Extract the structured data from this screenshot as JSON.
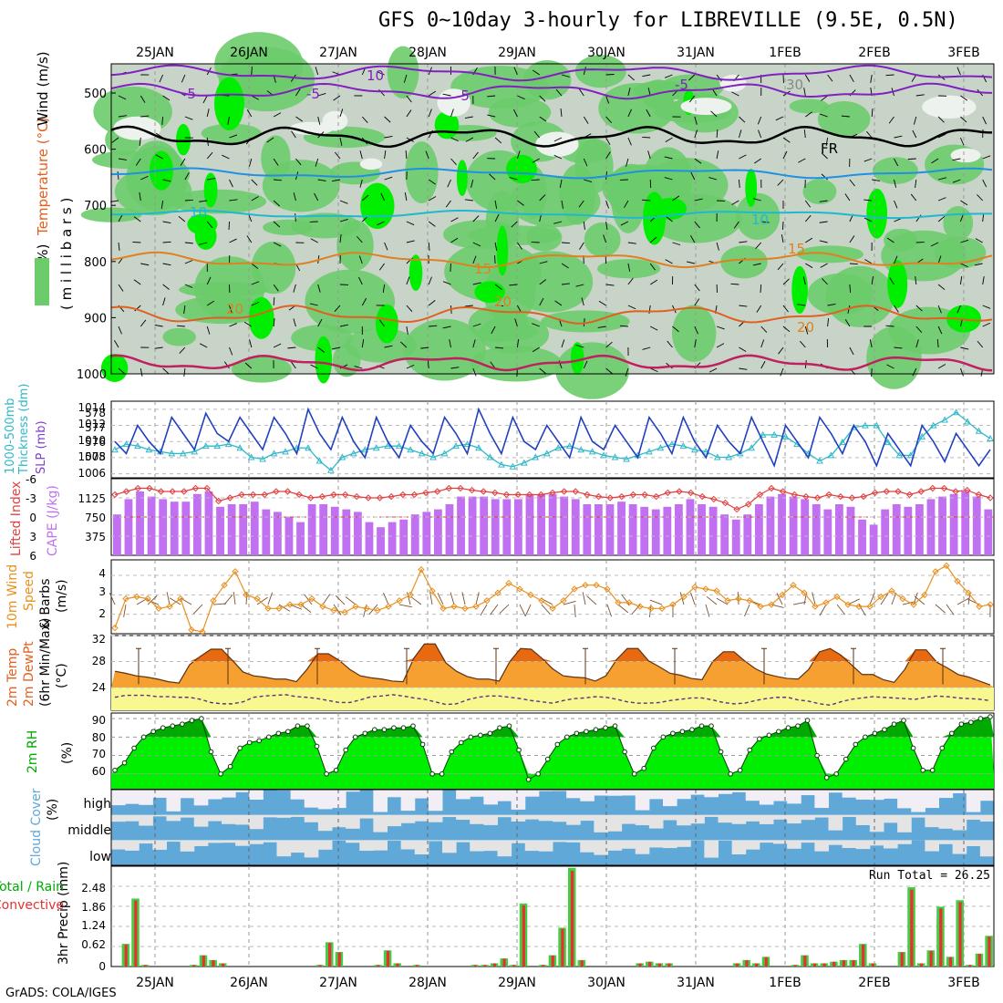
{
  "title": "GFS 0~10day 3-hourly for LIBREVILLE (9.5E, 0.5N)",
  "footer": "GrADS: COLA/IGES",
  "dates": [
    "25JAN",
    "26JAN",
    "27JAN",
    "28JAN",
    "29JAN",
    "30JAN",
    "31JAN",
    "1FEB",
    "2FEB",
    "3FEB"
  ],
  "colors": {
    "rh_light": "#c8d4c8",
    "rh_mid": "#6ccc6c",
    "rh_high": "#00ee00",
    "cape": "#c070f0",
    "temp": "#f5a030",
    "temp_peak": "#e86a10",
    "dewpt_fill": "#f8f890",
    "rh2m_dark": "#00aa00",
    "rh2m_light": "#00ee00",
    "cloud": "#5fa8d8",
    "cloud_clear": "#e4e4e4",
    "precip_total": "#44cc44",
    "precip_conv": "#e83030",
    "slp": "#2040c0",
    "thickness": "#30b8c8",
    "lifted": "#e04040",
    "wind10m": "#e89020"
  },
  "panels": {
    "upper": {
      "ylabel_wind": "Wind (m/s)",
      "ylabel_temp": "Temperature (°C)",
      "ylabel_rh": "RH (%)",
      "ylabel_p": "( m i l l i b a r s )",
      "pressure_ticks": [
        "500",
        "600",
        "700",
        "800",
        "900",
        "1000"
      ],
      "contour_labels": [
        "10",
        "-5",
        "-5",
        "30",
        "-5",
        "-5",
        "FR",
        "10",
        "10",
        "15",
        "15",
        "20",
        "20",
        "20"
      ]
    },
    "slp": {
      "label_left": "1000-500mb",
      "label_left2": "Thickness (dm)",
      "label_right": "SLP (mb)",
      "ticks_left": [
        "578",
        "577",
        "576",
        "575"
      ],
      "ticks_right": [
        "1014",
        "1012",
        "1010",
        "1008",
        "1006"
      ]
    },
    "cape": {
      "label_left": "Lifted Index",
      "label_right": "CAPE (J/kg)",
      "ticks_left": [
        "-6",
        "-3",
        "0",
        "3",
        "6"
      ],
      "ticks_right": [
        "1125",
        "750",
        "375"
      ]
    },
    "wind10": {
      "label1": "10m Wind",
      "label2": "Speed",
      "label3": "& Barbs",
      "unit": "(m/s)",
      "ticks": [
        "4",
        "3",
        "2"
      ]
    },
    "temp2m": {
      "label1": "2m Temp",
      "label2": "2m DewPt",
      "label3": "(6hr Min/Max)",
      "unit": "(°C)",
      "ticks": [
        "32",
        "28",
        "24"
      ]
    },
    "rh2m": {
      "label": "2m RH",
      "unit": "(%)",
      "ticks": [
        "90",
        "80",
        "70",
        "60"
      ]
    },
    "cloud": {
      "label": "Cloud Cover",
      "unit": "(%)",
      "levels": [
        "high",
        "middle",
        "low"
      ]
    },
    "precip": {
      "label1": "Total / Rain",
      "label2": "Convective",
      "unit": "3hr Precip (mm)",
      "ticks": [
        "2.48",
        "1.86",
        "1.24",
        "0.62",
        "0"
      ],
      "run_total": "Run Total = 26.25"
    }
  },
  "chart_data": [
    {
      "type": "area",
      "name": "upper-air RH/temperature/wind cross-section",
      "y_axis": "pressure (mb)",
      "ylim": [
        1000,
        450
      ],
      "contours_temp_c": [
        -10,
        -5,
        0,
        5,
        10,
        15,
        20,
        25
      ]
    },
    {
      "type": "line",
      "name": "SLP and thickness",
      "series": [
        {
          "name": "SLP (mb)",
          "values": [
            1010,
            1008.5,
            1012,
            1010,
            1008.5,
            1013,
            1011,
            1009,
            1013.5,
            1011,
            1010,
            1013,
            1011,
            1009,
            1013,
            1011,
            1008.5,
            1014,
            1011,
            1009,
            1013,
            1010,
            1008,
            1013,
            1010,
            1008,
            1012,
            1010,
            1008.5,
            1013,
            1011,
            1008.5,
            1014,
            1011,
            1008.5,
            1013,
            1010,
            1009,
            1012,
            1010,
            1008,
            1013,
            1010,
            1009,
            1012,
            1010,
            1008,
            1013,
            1011,
            1008.5,
            1013,
            1010,
            1008,
            1012,
            1010,
            1008.5,
            1013,
            1010,
            1007,
            1012,
            1010,
            1008,
            1013,
            1011,
            1008.5,
            1012,
            1010,
            1007,
            1011,
            1009,
            1007,
            1012,
            1010,
            1007.5,
            1011,
            1009,
            1007,
            1009
          ]
        },
        {
          "name": "Thickness (dm)",
          "values": [
            576,
            576.3,
            576.2,
            576,
            575.9,
            575.8,
            575.8,
            575.9,
            576.2,
            576.2,
            576.3,
            576.1,
            575.6,
            575.5,
            575.8,
            575.9,
            576.1,
            576.1,
            575.4,
            574.9,
            575.6,
            575.8,
            576,
            576.1,
            576.2,
            576.2,
            576,
            575.8,
            575.6,
            575.8,
            576.2,
            576.3,
            576.1,
            575.6,
            575.2,
            575.1,
            575.3,
            575.6,
            575.8,
            576.1,
            576.2,
            576,
            575.9,
            575.7,
            575.6,
            575.5,
            575.7,
            575.9,
            576.1,
            576.3,
            576.2,
            576,
            575.9,
            575.6,
            575.6,
            575.8,
            576.1,
            576.8,
            576.8,
            576.7,
            576.3,
            575.8,
            575.4,
            575.7,
            576.4,
            577.2,
            577.3,
            577.3,
            576.4,
            575.7,
            575.7,
            576.7,
            577.3,
            577.6,
            578,
            577.5,
            577,
            576.6
          ]
        }
      ]
    },
    {
      "type": "bar",
      "name": "CAPE and Lifted Index",
      "series": [
        {
          "name": "CAPE (J/kg)",
          "values": [
            800,
            1100,
            1250,
            1150,
            1100,
            1050,
            1050,
            1200,
            1250,
            950,
            1000,
            1000,
            1050,
            900,
            850,
            750,
            650,
            1000,
            1000,
            950,
            900,
            850,
            650,
            550,
            650,
            700,
            800,
            850,
            900,
            1000,
            1150,
            1150,
            1150,
            1100,
            1100,
            1100,
            1200,
            1200,
            1200,
            1150,
            1100,
            1000,
            1000,
            1000,
            1050,
            1000,
            950,
            900,
            950,
            1000,
            1100,
            1000,
            950,
            800,
            700,
            800,
            1000,
            1150,
            1200,
            1150,
            1100,
            1000,
            900,
            1000,
            950,
            700,
            600,
            900,
            1000,
            950,
            1000,
            1100,
            1150,
            1200,
            1250,
            1150,
            900
          ]
        },
        {
          "name": "Lifted Index",
          "values": [
            -3.5,
            -4,
            -4.5,
            -4.5,
            -4,
            -4,
            -4,
            -4.5,
            -4.5,
            -2.5,
            -3,
            -3.5,
            -3.5,
            -3.5,
            -4,
            -4,
            -3.5,
            -3,
            -3.2,
            -3.5,
            -3.5,
            -3.2,
            -3,
            -3,
            -3.2,
            -3.5,
            -3.5,
            -3.8,
            -4,
            -4.5,
            -4.5,
            -4.2,
            -4,
            -3.8,
            -3.5,
            -3.5,
            -3.5,
            -3.5,
            -3.8,
            -4,
            -4,
            -3.5,
            -3.2,
            -3,
            -3.2,
            -3.5,
            -3.5,
            -3.2,
            -3.8,
            -4,
            -3.8,
            -3.2,
            -2.8,
            -2.2,
            -1.2,
            -2,
            -3.5,
            -4.5,
            -4,
            -3.5,
            -3.2,
            -3,
            -3.5,
            -3.2,
            -3,
            -3.2,
            -3.8,
            -4,
            -4,
            -3.5,
            -4,
            -4.5,
            -4.5,
            -4,
            -4.2,
            -3.5,
            -3
          ]
        }
      ]
    },
    {
      "type": "line",
      "name": "10m wind speed",
      "series": [
        {
          "name": "Speed (m/s)",
          "values": [
            1.3,
            2.8,
            2.9,
            2.8,
            2.3,
            2.4,
            2.8,
            1.2,
            1.1,
            2.7,
            3.5,
            4.2,
            3.0,
            2.8,
            2.3,
            2.3,
            2.5,
            2.5,
            2.8,
            2.4,
            2.2,
            2.1,
            2.4,
            2.3,
            2.2,
            2.4,
            2.7,
            3.0,
            4.3,
            3.2,
            2.3,
            2.4,
            2.3,
            2.4,
            2.7,
            3.1,
            3.6,
            3.3,
            3.0,
            2.7,
            2.3,
            2.7,
            3.3,
            3.5,
            3.5,
            3.3,
            2.6,
            2.6,
            2.4,
            2.3,
            2.3,
            2.5,
            2.9,
            3.4,
            3.3,
            3.2,
            2.7,
            2.8,
            2.7,
            2.4,
            2.5,
            3.0,
            3.5,
            3.1,
            2.4,
            2.6,
            2.9,
            2.5,
            2.4,
            2.4,
            2.9,
            3.2,
            2.8,
            2.5,
            3.0,
            4.2,
            4.5,
            3.7,
            3.1,
            2.4,
            2.5
          ]
        }
      ]
    },
    {
      "type": "area",
      "name": "2m temperature and dew point",
      "series": [
        {
          "name": "2m Temp (°C)",
          "values": [
            26.5,
            26.2,
            25.8,
            25.6,
            25.3,
            24.9,
            24.7,
            27.5,
            28.8,
            29.9,
            29.9,
            28.2,
            26.4,
            25.8,
            25.6,
            25.3,
            25.3,
            24.9,
            26.8,
            29.2,
            29.2,
            28.2,
            26.8,
            25.8,
            25.5,
            25.3,
            25.0,
            24.9,
            28.5,
            30.7,
            30.7,
            27.8,
            26.5,
            25.7,
            25.3,
            25.3,
            25.0,
            28.0,
            30.0,
            29.9,
            28.5,
            26.9,
            25.8,
            25.6,
            25.5,
            25.0,
            25.8,
            28.3,
            30.0,
            30.0,
            28.1,
            27.2,
            26.2,
            25.9,
            25.4,
            25.2,
            28.0,
            29.5,
            29.5,
            28.1,
            26.9,
            26.1,
            25.7,
            25.4,
            25.3,
            26.8,
            29.5,
            30.0,
            29.0,
            27.5,
            26.0,
            26.0,
            25.2,
            24.8,
            26.8,
            29.8,
            29.8,
            27.9,
            27.0,
            26.0,
            25.6,
            25.0,
            24.4
          ]
        },
        {
          "name": "2m DewPt (°C)",
          "values": [
            22.5,
            22.8,
            22.8,
            22.8,
            22.6,
            22.6,
            22.5,
            22.5,
            22.2,
            21.7,
            21.5,
            21.5,
            21.8,
            22.5,
            22.7,
            22.8,
            22.9,
            22.6,
            22.5,
            22.3,
            22.0,
            21.7,
            21.7,
            22.1,
            22.6,
            22.7,
            22.9,
            22.7,
            22.4,
            22.2,
            21.8,
            21.4,
            21.5,
            22.1,
            22.5,
            22.7,
            22.7,
            22.5,
            22.3,
            22.0,
            21.8,
            21.6,
            22.0,
            22.3,
            22.4,
            22.6,
            22.5,
            22.2,
            21.8,
            21.6,
            21.6,
            21.7,
            22.0,
            22.2,
            22.4,
            22.4,
            22.1,
            21.7,
            21.5,
            21.6,
            22.0,
            22.3,
            22.5,
            22.5,
            22.1,
            21.9,
            21.5,
            21.3,
            21.8,
            22.2,
            22.4,
            22.6,
            22.5,
            22.4,
            22.3,
            22.2,
            22.5,
            22.7,
            22.6,
            22.4,
            22.3,
            22.2,
            22.0
          ]
        }
      ]
    },
    {
      "type": "area",
      "name": "2m RH",
      "series": [
        {
          "name": "2m RH (%)",
          "values": [
            62,
            66,
            74,
            80,
            83,
            85,
            86,
            87,
            89,
            90,
            72,
            60,
            64,
            74,
            77,
            78,
            80,
            82,
            83,
            86,
            86,
            75,
            60,
            62,
            73,
            80,
            82,
            84,
            84,
            85,
            85,
            86,
            76,
            60,
            60,
            72,
            77,
            80,
            81,
            82,
            85,
            86,
            73,
            57,
            60,
            68,
            76,
            80,
            82,
            83,
            84,
            85,
            86,
            72,
            60,
            63,
            74,
            80,
            82,
            83,
            84,
            86,
            86,
            72,
            60,
            62,
            73,
            79,
            81,
            83,
            85,
            86,
            89,
            70,
            58,
            60,
            68,
            76,
            80,
            82,
            84,
            87,
            89,
            74,
            62,
            62,
            74,
            82,
            87,
            88,
            90,
            91
          ]
        }
      ]
    },
    {
      "type": "area",
      "name": "Cloud cover",
      "levels": [
        "high",
        "middle",
        "low"
      ],
      "ylim": [
        0,
        100
      ]
    },
    {
      "type": "bar",
      "name": "3hr Precip",
      "ylim": [
        0,
        3.1
      ],
      "series": [
        {
          "name": "Total (mm)",
          "values": [
            0,
            0.7,
            2.1,
            0.05,
            0,
            0,
            0,
            0,
            0.05,
            0.35,
            0.2,
            0.1,
            0,
            0,
            0,
            0,
            0,
            0,
            0,
            0,
            0,
            0.05,
            0.75,
            0.45,
            0,
            0,
            0,
            0.05,
            0.5,
            0.1,
            0,
            0.05,
            0,
            0,
            0,
            0,
            0,
            0.05,
            0.05,
            0.1,
            0.25,
            0.05,
            1.95,
            0,
            0.05,
            0.35,
            1.2,
            3.05,
            0.2,
            0,
            0,
            0,
            0,
            0,
            0.1,
            0.15,
            0.1,
            0.1,
            0,
            0,
            0,
            0,
            0,
            0,
            0.1,
            0.2,
            0.1,
            0.3,
            0,
            0,
            0.05,
            0.35,
            0.1,
            0.1,
            0.15,
            0.2,
            0.2,
            0.7,
            0.1,
            0,
            0,
            0.45,
            2.45,
            0.1,
            0.5,
            1.85,
            0.3,
            2.05,
            0.05,
            0.4,
            0.95
          ]
        }
      ]
    }
  ]
}
